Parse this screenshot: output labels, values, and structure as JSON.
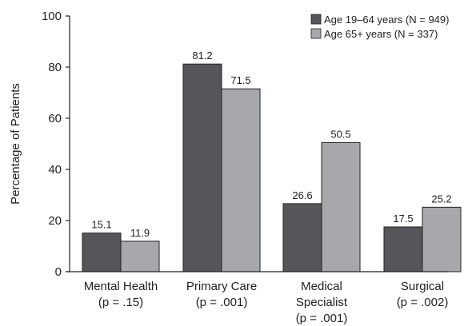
{
  "chart_data": {
    "type": "bar",
    "ylabel": "Percentage of Patients",
    "ylim": [
      0,
      100
    ],
    "yticks": [
      "0",
      "20",
      "40",
      "60",
      "80",
      "100"
    ],
    "categories": [
      [
        "Mental Health",
        "(p = .15)"
      ],
      [
        "Primary Care",
        "(p = .001)"
      ],
      [
        "Medical",
        "Specialist",
        "(p = .001)"
      ],
      [
        "Surgical",
        "(p = .002)"
      ]
    ],
    "series": [
      {
        "name": "Age 19–64 years (N = 949)",
        "color": "#55565a",
        "values": [
          15.1,
          81.2,
          26.6,
          17.5
        ],
        "labels": [
          "15.1",
          "81.2",
          "26.6",
          "17.5"
        ]
      },
      {
        "name": "Age 65+ years (N = 337)",
        "color": "#a7a8ab",
        "values": [
          11.9,
          71.5,
          50.5,
          25.2
        ],
        "labels": [
          "11.9",
          "71.5",
          "50.5",
          "25.2"
        ]
      }
    ],
    "legend_position": "top-right",
    "grid": false
  }
}
